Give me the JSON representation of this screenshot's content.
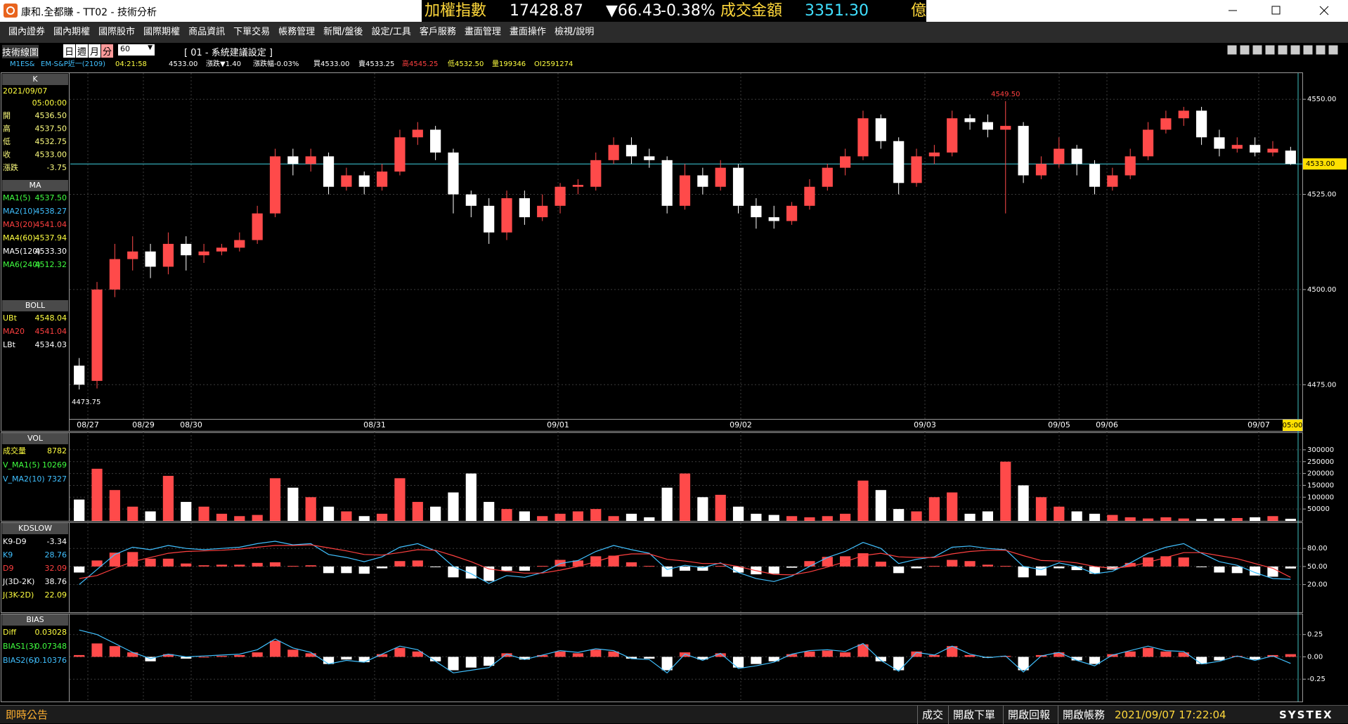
{
  "window": {
    "title": "康和.全都賺 - TT02 - 技術分析",
    "ticker": {
      "name": "加權指數",
      "value": "17428.87",
      "change": "▼66.43",
      "pct": "-0.38%",
      "turnover_label": "成交金額",
      "turnover": "3351.30",
      "unit": "億"
    }
  },
  "menu": [
    "國內證券",
    "國內期權",
    "國際股市",
    "國際期權",
    "商品資訊",
    "下單交易",
    "帳務管理",
    "新聞/盤後",
    "設定/工具",
    "客戶服務",
    "畫面管理",
    "畫面操作",
    "檢視/說明"
  ],
  "toolbar": {
    "title": "技術線圖",
    "periods": [
      "日",
      "週",
      "月",
      "分"
    ],
    "interval": "60",
    "setting": "[ 01 - 系統建議設定 ]"
  },
  "quote": {
    "symbol": "M1ES&",
    "name": "EM-S&P近一(2109)",
    "time": "04:21:58",
    "price": "4533.00",
    "change": "漲跌▼1.40",
    "pct": "漲跌幅-0.03%",
    "bid": "買4533.00",
    "ask": "賣4533.25",
    "high": "高4545.25",
    "low": "低4532.50",
    "volume": "量199346",
    "oi": "OI2591274"
  },
  "price_panel": {
    "header": "K",
    "date": "2021/09/07",
    "time": "05:00:00",
    "rows": [
      [
        "開",
        "4536.50"
      ],
      [
        "高",
        "4537.50"
      ],
      [
        "低",
        "4532.75"
      ],
      [
        "收",
        "4533.00"
      ],
      [
        "漲跌",
        "-3.75"
      ]
    ],
    "ma_header": "MA",
    "ma_rows": [
      [
        "MA1(5)",
        "4537.50"
      ],
      [
        "MA2(10)",
        "4538.27"
      ],
      [
        "MA3(20)",
        "4541.04"
      ],
      [
        "MA4(60)",
        "4537.94"
      ],
      [
        "MA5(120)",
        "4533.30"
      ],
      [
        "MA6(240)",
        "4512.32"
      ]
    ],
    "boll_header": "BOLL",
    "boll_rows": [
      [
        "UBt",
        "4548.04"
      ],
      [
        "MA20",
        "4541.04"
      ],
      [
        "LBt",
        "4534.03"
      ]
    ]
  },
  "volume_panel": {
    "header": "VOL",
    "rows": [
      [
        "成交量",
        "8782"
      ],
      [
        "V_MA1(5)",
        "10269"
      ],
      [
        "V_MA2(10)",
        "7327"
      ]
    ]
  },
  "kd_panel": {
    "header": "KDSLOW",
    "rows": [
      [
        "K9-D9",
        "-3.34"
      ],
      [
        "K9",
        "28.76"
      ],
      [
        "D9",
        "32.09"
      ],
      [
        "J(3D-2K)",
        "38.76"
      ],
      [
        "J(3K-2D)",
        "22.09"
      ]
    ]
  },
  "bias_panel": {
    "header": "BIAS",
    "rows": [
      [
        "Diff",
        "0.03028"
      ],
      [
        "BIAS1(3)",
        "-0.07348"
      ],
      [
        "BIAS2(6)",
        "-0.10376"
      ]
    ]
  },
  "charts": {
    "price": {
      "type": "candlestick",
      "up_color": "#ff4a4a",
      "down_color": "#ffffff",
      "open": [
        4480,
        4476,
        4500,
        4508,
        4510,
        4506,
        4512,
        4509,
        4510,
        4511,
        4513,
        4520,
        4535,
        4533,
        4535,
        4527,
        4530,
        4527,
        4531,
        4540,
        4542,
        4536,
        4525,
        4522,
        4515,
        4524,
        4519,
        4522,
        4527,
        4527,
        4534,
        4538,
        4535,
        4534,
        4522,
        4530,
        4527,
        4532,
        4522,
        4519,
        4518,
        4522,
        4527,
        4532,
        4535,
        4545,
        4539,
        4528,
        4535,
        4536,
        4545,
        4544,
        4542,
        4543,
        4530,
        4533,
        4537,
        4533,
        4527,
        4530,
        4535,
        4542,
        4545,
        4547,
        4540,
        4537,
        4538,
        4536,
        4536.5
      ],
      "high": [
        4482,
        4502,
        4512,
        4514,
        4512,
        4515,
        4514,
        4512,
        4512,
        4515,
        4522,
        4537,
        4537,
        4537,
        4536,
        4532,
        4531,
        4533,
        4542,
        4544,
        4543,
        4537,
        4526,
        4524,
        4526,
        4526,
        4525,
        4528,
        4529,
        4536,
        4540,
        4540,
        4537,
        4535,
        4533,
        4532,
        4534,
        4533,
        4524,
        4522,
        4523,
        4529,
        4533,
        4537,
        4547,
        4546,
        4540,
        4537,
        4538,
        4547,
        4546,
        4546,
        4549.5,
        4544,
        4535,
        4540,
        4538,
        4534,
        4532,
        4537,
        4544,
        4547,
        4548,
        4548,
        4542,
        4540,
        4540,
        4539,
        4537.5
      ],
      "low": [
        4473.75,
        4474,
        4498,
        4505,
        4503,
        4504,
        4505,
        4507,
        4509,
        4510,
        4512,
        4519,
        4530,
        4531,
        4525,
        4526,
        4525,
        4526,
        4530,
        4538,
        4534,
        4520,
        4519,
        4512,
        4513,
        4517,
        4518,
        4520,
        4525,
        4526,
        4533,
        4533,
        4532,
        4520,
        4521,
        4525,
        4526,
        4520,
        4516,
        4516,
        4517,
        4521,
        4526,
        4530,
        4534,
        4537,
        4525,
        4527,
        4533,
        4535,
        4542,
        4540,
        4520,
        4528,
        4529,
        4532,
        4530,
        4525,
        4526,
        4529,
        4534,
        4541,
        4543,
        4538,
        4535,
        4536,
        4535,
        4535,
        4532.75
      ],
      "close": [
        4475,
        4500,
        4508,
        4510,
        4506,
        4512,
        4509,
        4510,
        4511,
        4513,
        4520,
        4535,
        4533,
        4535,
        4527,
        4530,
        4527,
        4531,
        4540,
        4542,
        4536,
        4525,
        4522,
        4515,
        4524,
        4519,
        4522,
        4527,
        4527.5,
        4534,
        4538,
        4535,
        4534,
        4522,
        4530,
        4527,
        4532,
        4522,
        4519,
        4518,
        4522,
        4527,
        4532,
        4535,
        4545,
        4539,
        4528,
        4535,
        4536,
        4545,
        4544,
        4542,
        4543,
        4530,
        4533,
        4537,
        4533,
        4527,
        4530,
        4535,
        4542,
        4545,
        4547,
        4540,
        4537,
        4538,
        4536,
        4537,
        4533
      ],
      "ylim": [
        4466,
        4556.5
      ],
      "yticks": [
        {
          "value": 4475,
          "label": "4475.00"
        },
        {
          "value": 4500,
          "label": "4500.00"
        },
        {
          "value": 4525,
          "label": "4525.00"
        },
        {
          "value": 4550,
          "label": "4550.00"
        }
      ],
      "last": {
        "value": 4533,
        "label": "4533.00"
      },
      "high_label": {
        "value": 4549.5,
        "label": "4549.50"
      },
      "low_label": {
        "value": 4473.75,
        "label": "4473.75"
      },
      "dates": [
        "08/27",
        "08/29",
        "08/30",
        "08/31",
        "09/01",
        "09/02",
        "09/03",
        "09/05",
        "09/06",
        "09/07"
      ],
      "time_label": "05:00"
    },
    "volume": {
      "type": "bar",
      "values": [
        90000,
        220000,
        130000,
        60000,
        40000,
        190000,
        80000,
        60000,
        30000,
        20000,
        25000,
        180000,
        140000,
        100000,
        60000,
        40000,
        20000,
        30000,
        180000,
        80000,
        60000,
        120000,
        200000,
        80000,
        50000,
        40000,
        20000,
        30000,
        40000,
        50000,
        20000,
        30000,
        15000,
        140000,
        200000,
        100000,
        110000,
        60000,
        30000,
        25000,
        20000,
        15000,
        20000,
        30000,
        170000,
        130000,
        50000,
        40000,
        100000,
        120000,
        30000,
        40000,
        250000,
        150000,
        100000,
        60000,
        40000,
        30000,
        25000,
        15000,
        10000,
        15000,
        10000,
        8000,
        10000,
        12000,
        15000,
        20000,
        8782
      ],
      "ylim": [
        0,
        365000
      ],
      "yticks": [
        50000,
        100000,
        150000,
        200000,
        250000,
        300000
      ]
    },
    "kd": {
      "type": "line",
      "k_color": "#40c0ff",
      "d_color": "#ff4040",
      "k": [
        20,
        45,
        70,
        82,
        78,
        85,
        80,
        78,
        80,
        82,
        88,
        92,
        86,
        88,
        70,
        65,
        58,
        66,
        82,
        88,
        76,
        50,
        38,
        22,
        35,
        32,
        40,
        55,
        60,
        75,
        85,
        78,
        72,
        45,
        52,
        48,
        56,
        40,
        30,
        25,
        34,
        50,
        65,
        75,
        90,
        80,
        55,
        62,
        66,
        82,
        84,
        80,
        78,
        50,
        45,
        56,
        50,
        38,
        42,
        56,
        72,
        82,
        88,
        72,
        58,
        52,
        40,
        30,
        28.76
      ],
      "d": [
        30,
        35,
        47,
        58,
        65,
        72,
        75,
        76,
        77,
        79,
        82,
        85,
        85,
        86,
        81,
        76,
        70,
        69,
        73,
        78,
        77,
        68,
        58,
        46,
        42,
        39,
        39,
        44,
        50,
        58,
        67,
        71,
        71,
        62,
        59,
        55,
        55,
        50,
        43,
        37,
        36,
        41,
        49,
        58,
        68,
        72,
        66,
        65,
        65,
        71,
        75,
        77,
        77,
        68,
        60,
        59,
        56,
        50,
        47,
        50,
        57,
        65,
        73,
        73,
        68,
        63,
        55,
        47,
        32.09
      ],
      "diff": [
        -10,
        10,
        23,
        24,
        13,
        13,
        5,
        2,
        3,
        3,
        6,
        7,
        1,
        2,
        -11,
        -11,
        -12,
        -3,
        9,
        10,
        -1,
        -18,
        -20,
        -24,
        -7,
        -7,
        1,
        11,
        10,
        17,
        18,
        7,
        1,
        -17,
        -7,
        -7,
        1,
        -10,
        -13,
        -12,
        -2,
        9,
        16,
        17,
        22,
        8,
        -11,
        -3,
        1,
        11,
        9,
        3,
        1,
        -18,
        -15,
        -3,
        -6,
        -12,
        -5,
        6,
        15,
        17,
        15,
        -1,
        -10,
        -11,
        -15,
        -17,
        -3.34
      ],
      "ylim": [
        -26,
        120
      ],
      "yticks": [
        {
          "value": 20,
          "label": "20.00"
        },
        {
          "value": 50,
          "label": "50.00"
        },
        {
          "value": 80,
          "label": "80.00"
        }
      ]
    },
    "bias": {
      "type": "bar",
      "line_color": "#40c0ff",
      "diff": [
        0.02,
        0.15,
        0.12,
        0.05,
        -0.05,
        0.03,
        -0.02,
        0,
        0.01,
        0.02,
        0.05,
        0.18,
        0.08,
        0.04,
        -0.08,
        -0.03,
        -0.06,
        0.03,
        0.1,
        0.06,
        -0.05,
        -0.15,
        -0.12,
        -0.1,
        0.04,
        -0.03,
        0.02,
        0.06,
        0.04,
        0.08,
        0.06,
        -0.02,
        -0.02,
        -0.15,
        0.05,
        -0.03,
        0.04,
        -0.12,
        -0.08,
        -0.05,
        0.03,
        0.06,
        0.07,
        0.05,
        0.14,
        -0.05,
        -0.15,
        0.06,
        0.02,
        0.12,
        0.02,
        -0.01,
        0.01,
        -0.15,
        0.02,
        0.05,
        -0.04,
        -0.08,
        0.03,
        0.06,
        0.1,
        0.06,
        0.05,
        -0.08,
        -0.04,
        0.01,
        -0.03,
        0.02,
        0.03028
      ],
      "bias1": [
        0.3,
        0.25,
        0.15,
        0.05,
        -0.02,
        0.03,
        0,
        0.01,
        0.02,
        0.03,
        0.08,
        0.2,
        0.1,
        0.05,
        -0.08,
        -0.04,
        -0.06,
        0.03,
        0.12,
        0.08,
        -0.05,
        -0.18,
        -0.15,
        -0.12,
        0.03,
        -0.03,
        0.02,
        0.07,
        0.05,
        0.09,
        0.07,
        -0.02,
        -0.03,
        -0.18,
        0.03,
        -0.04,
        0.04,
        -0.13,
        -0.1,
        -0.06,
        0.03,
        0.07,
        0.08,
        0.06,
        0.15,
        -0.04,
        -0.16,
        0.05,
        0.02,
        0.12,
        0.03,
        -0.01,
        0.01,
        -0.17,
        0.01,
        0.05,
        -0.04,
        -0.1,
        0.02,
        0.07,
        0.12,
        0.07,
        0.06,
        -0.08,
        -0.05,
        0.01,
        -0.04,
        0.01,
        -0.07348
      ],
      "ylim": [
        -0.5,
        0.46
      ],
      "yticks": [
        -0.25,
        {
          "value": 0,
          "label": "0.00"
        },
        0.25
      ]
    }
  },
  "status": {
    "notice": "即時公告",
    "buttons": [
      "成交",
      "開啟下單",
      "開啟回報",
      "開啟帳務"
    ],
    "datetime": "2021/09/07 17:22:04",
    "brand": "SYSTEX"
  }
}
